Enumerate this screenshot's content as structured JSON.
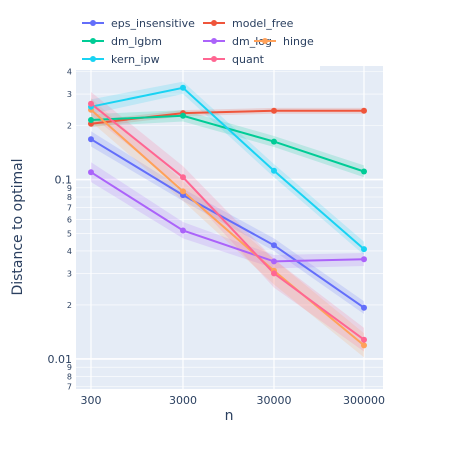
{
  "chart_data": {
    "type": "line",
    "xlabel": "n",
    "ylabel": "Distance to optimal",
    "x": [
      300,
      3000,
      30000,
      300000
    ],
    "x_tick_labels": [
      "300",
      "3000",
      "30000",
      "300000"
    ],
    "x_scale": "log",
    "y_scale": "log",
    "ylim": [
      0.0068,
      0.43
    ],
    "y_major_ticks": [
      {
        "value": 0.01,
        "label": "0.01"
      },
      {
        "value": 0.1,
        "label": "0.1"
      }
    ],
    "y_minor_ticks": [
      {
        "value": 0.007,
        "label": "7"
      },
      {
        "value": 0.008,
        "label": "8"
      },
      {
        "value": 0.009,
        "label": "9"
      },
      {
        "value": 0.02,
        "label": "2"
      },
      {
        "value": 0.03,
        "label": "3"
      },
      {
        "value": 0.04,
        "label": "4"
      },
      {
        "value": 0.05,
        "label": "5"
      },
      {
        "value": 0.06,
        "label": "6"
      },
      {
        "value": 0.07,
        "label": "7"
      },
      {
        "value": 0.08,
        "label": "8"
      },
      {
        "value": 0.09,
        "label": "9"
      },
      {
        "value": 0.2,
        "label": "2"
      },
      {
        "value": 0.3,
        "label": "3"
      },
      {
        "value": 0.4,
        "label": "4"
      }
    ],
    "grid": true,
    "legend_position": "top-left",
    "series": [
      {
        "name": "eps_insensitive",
        "color": "#636efa",
        "values": [
          0.168,
          0.082,
          0.043,
          0.0193
        ],
        "lower": [
          0.153,
          0.076,
          0.04,
          0.0178
        ],
        "upper": [
          0.186,
          0.089,
          0.047,
          0.021
        ]
      },
      {
        "name": "model_free",
        "color": "#EF553B",
        "values": [
          0.205,
          0.235,
          0.242,
          0.242
        ],
        "lower": [
          0.196,
          0.226,
          0.233,
          0.233
        ],
        "upper": [
          0.214,
          0.244,
          0.251,
          0.251
        ]
      },
      {
        "name": "dm_lgbm",
        "color": "#00cc96",
        "values": [
          0.215,
          0.227,
          0.163,
          0.111
        ],
        "lower": [
          0.198,
          0.211,
          0.152,
          0.103
        ],
        "upper": [
          0.232,
          0.244,
          0.175,
          0.12
        ]
      },
      {
        "name": "dm_log",
        "color": "#ab63fa",
        "values": [
          0.11,
          0.052,
          0.035,
          0.036
        ],
        "lower": [
          0.097,
          0.047,
          0.032,
          0.033
        ],
        "upper": [
          0.125,
          0.058,
          0.038,
          0.039
        ]
      },
      {
        "name": "hinge",
        "color": "#FFA15A",
        "values": [
          0.245,
          0.086,
          0.031,
          0.0119
        ],
        "lower": [
          0.21,
          0.076,
          0.026,
          0.0102
        ],
        "upper": [
          0.285,
          0.098,
          0.036,
          0.0139
        ]
      },
      {
        "name": "kern_ipw",
        "color": "#19d3f3",
        "values": [
          0.255,
          0.325,
          0.112,
          0.041
        ],
        "lower": [
          0.232,
          0.3,
          0.103,
          0.038
        ],
        "upper": [
          0.28,
          0.352,
          0.122,
          0.045
        ]
      },
      {
        "name": "quant",
        "color": "#FF6692",
        "values": [
          0.265,
          0.103,
          0.03,
          0.0128
        ],
        "lower": [
          0.228,
          0.089,
          0.025,
          0.011
        ],
        "upper": [
          0.308,
          0.119,
          0.036,
          0.0149
        ]
      }
    ]
  }
}
